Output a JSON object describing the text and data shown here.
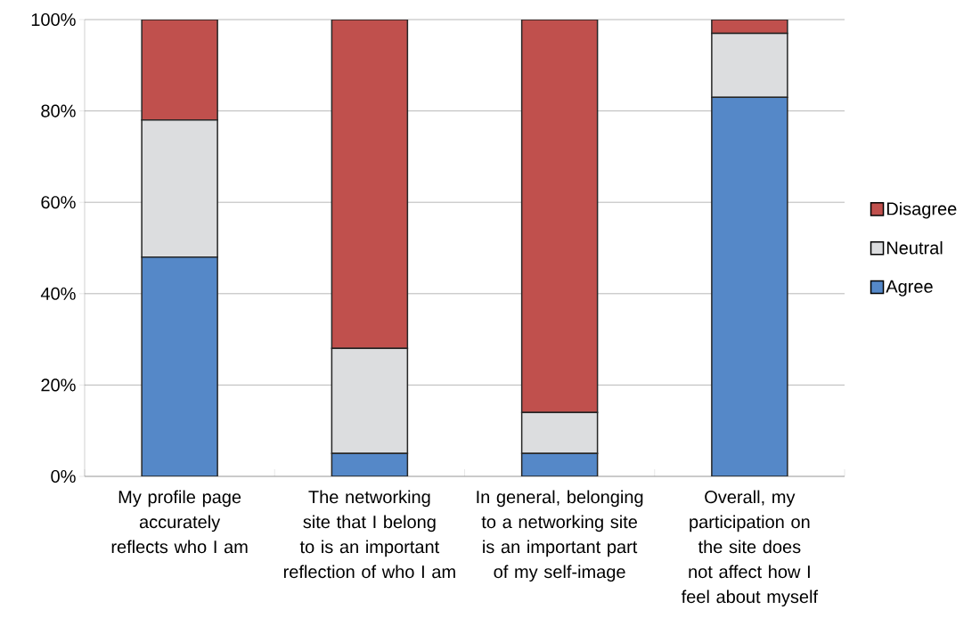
{
  "chart_data": {
    "type": "bar",
    "stacked": true,
    "categories": [
      "My profile page accurately reflects who I am",
      "The networking site that I belong to is an important reflection of who I am",
      "In general, belonging to a networking site is an important part of my self-image",
      "Overall, my participation on the site does not affect how I feel about myself"
    ],
    "series": [
      {
        "name": "Agree",
        "color": "#5588c8",
        "values": [
          48,
          5,
          5,
          83
        ]
      },
      {
        "name": "Neutral",
        "color": "#dcdddf",
        "values": [
          30,
          23,
          9,
          14
        ]
      },
      {
        "name": "Disagree",
        "color": "#c0504d",
        "values": [
          22,
          72,
          86,
          3
        ]
      }
    ],
    "ylim": [
      0,
      100
    ],
    "yticks": [
      {
        "value": 0,
        "label": "0%"
      },
      {
        "value": 20,
        "label": "20%"
      },
      {
        "value": 40,
        "label": "40%"
      },
      {
        "value": 60,
        "label": "60%"
      },
      {
        "value": 80,
        "label": "80%"
      },
      {
        "value": 100,
        "label": "100%"
      }
    ],
    "grid": "y",
    "legend": "right"
  }
}
